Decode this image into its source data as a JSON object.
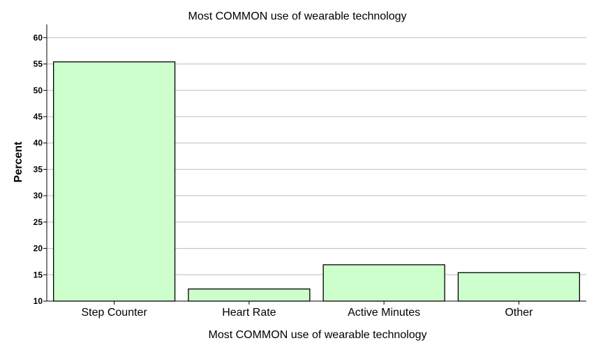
{
  "chart_data": {
    "type": "bar",
    "title": "Most COMMON use of wearable technology",
    "xlabel": "Most COMMON use of wearable technology",
    "ylabel": "Percent",
    "categories": [
      "Step Counter",
      "Heart Rate",
      "Active Minutes",
      "Other"
    ],
    "values": [
      55.4,
      12.3,
      16.9,
      15.4
    ],
    "ylim": [
      10,
      62.5
    ],
    "yticks": [
      10,
      15,
      20,
      25,
      30,
      35,
      40,
      45,
      50,
      55,
      60
    ],
    "grid": true,
    "bar_color": "#ccffcc"
  }
}
